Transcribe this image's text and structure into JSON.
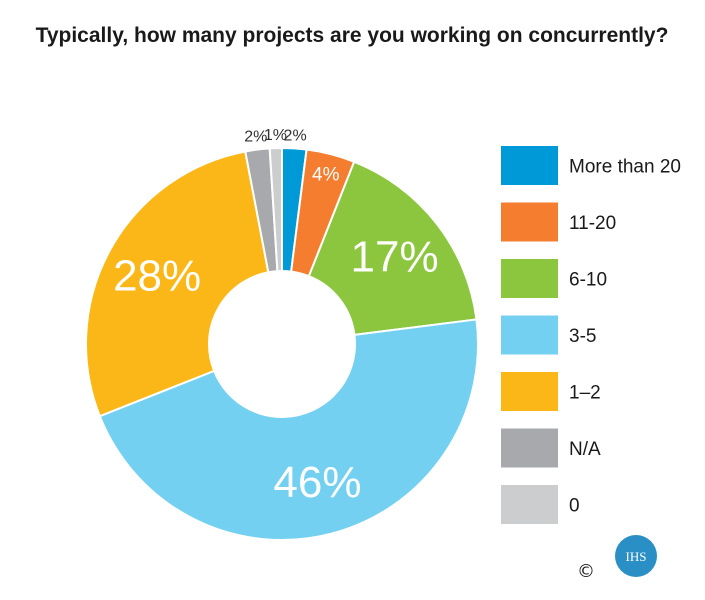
{
  "chart_data": {
    "type": "pie",
    "title": "Typically, how many projects are you working on concurrently?",
    "categories": [
      "More than 20",
      "11-20",
      "6-10",
      "3-5",
      "1–2",
      "N/A",
      "0"
    ],
    "values": [
      2,
      4,
      17,
      46,
      28,
      2,
      1
    ],
    "value_labels": [
      "2%",
      "4%",
      "17%",
      "46%",
      "28%",
      "2%",
      "1%"
    ],
    "colors": [
      "#0099d8",
      "#f47d30",
      "#8cc63f",
      "#74d0f1",
      "#fbb717",
      "#a7a9ac",
      "#cccdce"
    ],
    "donut": true,
    "legend_position": "right"
  },
  "footer": {
    "copyright": "©",
    "logo": {
      "name": "IHS logo",
      "text": "IHS",
      "color": "#2a8fc4"
    }
  }
}
